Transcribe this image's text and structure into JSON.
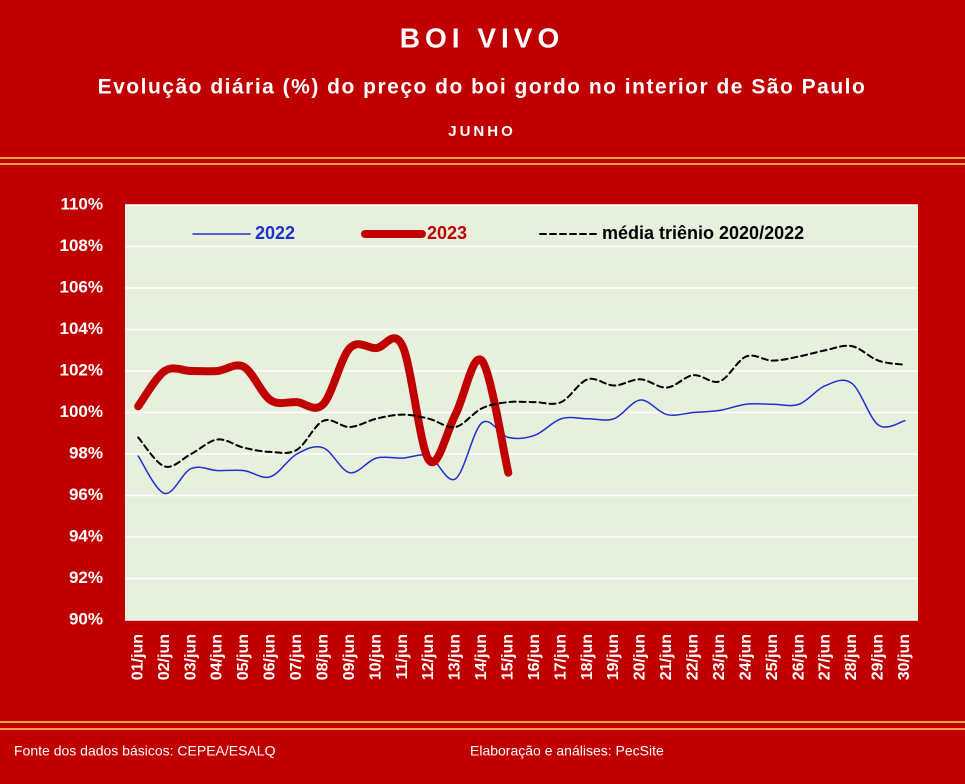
{
  "chart_data": {
    "type": "line",
    "title": "BOI VIVO",
    "subtitle": "Evolução diária (%) do preço do boi gordo no interior de São Paulo",
    "month": "JUNHO",
    "categories": [
      "01/jun",
      "02/jun",
      "03/jun",
      "04/jun",
      "05/jun",
      "06/jun",
      "07/jun",
      "08/jun",
      "09/jun",
      "10/jun",
      "11/jun",
      "12/jun",
      "13/jun",
      "14/jun",
      "15/jun",
      "16/jun",
      "17/jun",
      "18/jun",
      "19/jun",
      "20/jun",
      "21/jun",
      "22/jun",
      "23/jun",
      "24/jun",
      "25/jun",
      "26/jun",
      "27/jun",
      "28/jun",
      "29/jun",
      "30/jun"
    ],
    "series": [
      {
        "name": "2022",
        "color": "#1f2fd0",
        "width": 1.5,
        "dash": false,
        "values": [
          97.9,
          96.1,
          97.3,
          97.2,
          97.2,
          96.9,
          98.0,
          98.3,
          97.1,
          97.8,
          97.8,
          97.9,
          96.8,
          99.5,
          98.8,
          98.9,
          99.7,
          99.7,
          99.7,
          100.6,
          99.9,
          100.0,
          100.1,
          100.4,
          100.4,
          100.4,
          101.3,
          101.4,
          99.4,
          99.6
        ]
      },
      {
        "name": "2023",
        "color": "#c00000",
        "width": 8,
        "dash": false,
        "values": [
          100.3,
          102.0,
          102.0,
          102.0,
          102.2,
          100.6,
          100.5,
          100.4,
          103.1,
          103.1,
          103.2,
          97.7,
          99.9,
          102.5,
          97.1,
          null,
          null,
          null,
          null,
          null,
          null,
          null,
          null,
          null,
          null,
          null,
          null,
          null,
          null,
          null
        ]
      },
      {
        "name": "média triênio 2020/2022",
        "color": "#000000",
        "width": 2,
        "dash": true,
        "values": [
          98.8,
          97.4,
          98.0,
          98.7,
          98.3,
          98.1,
          98.2,
          99.6,
          99.3,
          99.7,
          99.9,
          99.7,
          99.3,
          100.2,
          100.5,
          100.5,
          100.5,
          101.6,
          101.3,
          101.6,
          101.2,
          101.8,
          101.5,
          102.7,
          102.5,
          102.7,
          103.0,
          103.2,
          102.5,
          102.3
        ]
      }
    ],
    "ylim": [
      90,
      110
    ],
    "yticks": [
      {
        "value": 90,
        "label": "90%"
      },
      {
        "value": 92,
        "label": "92%"
      },
      {
        "value": 94,
        "label": "94%"
      },
      {
        "value": 96,
        "label": "96%"
      },
      {
        "value": 98,
        "label": "98%"
      },
      {
        "value": 100,
        "label": "100%"
      },
      {
        "value": 102,
        "label": "102%"
      },
      {
        "value": 104,
        "label": "104%"
      },
      {
        "value": 106,
        "label": "106%"
      },
      {
        "value": 108,
        "label": "108%"
      },
      {
        "value": 110,
        "label": "110%"
      }
    ],
    "grid": true,
    "legend": "top",
    "source": "Fonte dos dados básicos: CEPEA/ESALQ",
    "credit": "Elaboração e análises: PecSite"
  }
}
